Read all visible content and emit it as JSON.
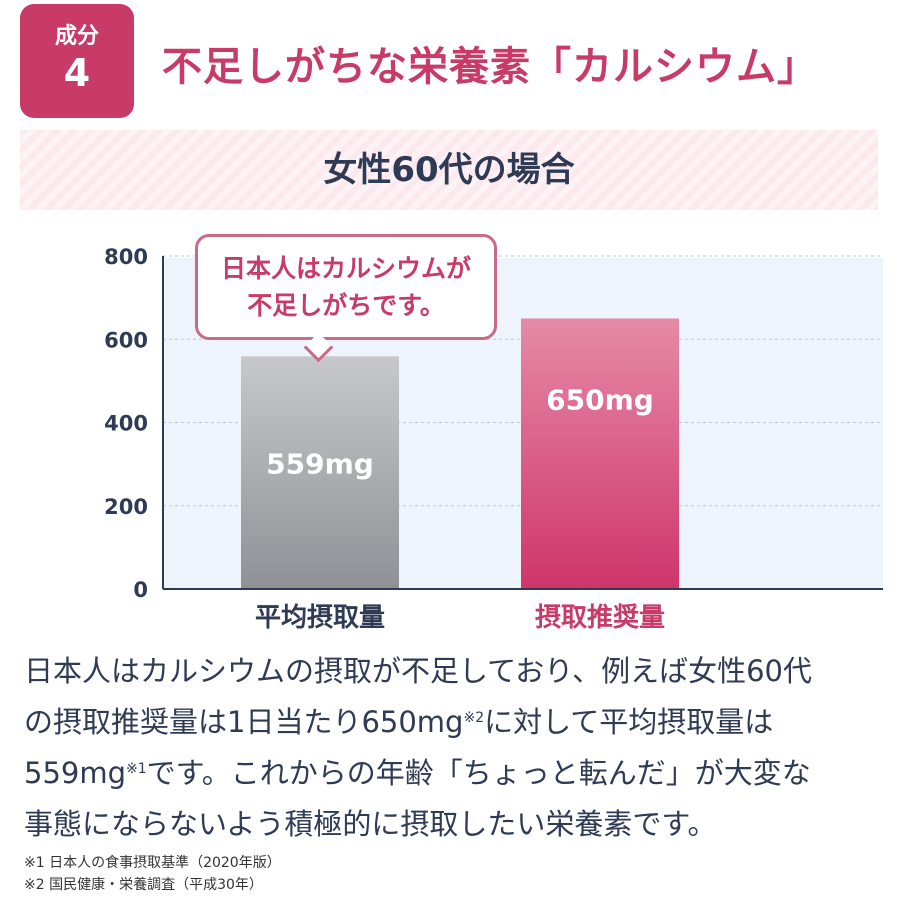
{
  "header": {
    "badge_label": "成分",
    "badge_number": "4",
    "title": "不足しがちな栄養素「カルシウム」",
    "subtitle": "女性60代の場合"
  },
  "callout": {
    "line1": "日本人はカルシウムが",
    "line2": "不足しがちです。"
  },
  "chart_data": {
    "type": "bar",
    "title": "",
    "xlabel": "",
    "ylabel": "",
    "categories": [
      "平均摂取量",
      "摂取推奨量"
    ],
    "values": [
      559,
      650
    ],
    "value_labels": [
      "559mg",
      "650mg"
    ],
    "ylim": [
      0,
      800
    ],
    "yticks": [
      0,
      200,
      400,
      600,
      800
    ],
    "grid": true,
    "bar_colors": [
      "#a3a5aa",
      "#d03d6f"
    ],
    "category_label_colors": [
      "#2f3a55",
      "#c83a68"
    ]
  },
  "body": {
    "line1": "日本人はカルシウムの摂取が不足しており、例えば女性60代",
    "line2a": "の摂取推奨量は1日当たり650mg",
    "line2_sup": "※2",
    "line2b": "に対して平均摂取量は",
    "line3a": "559mg",
    "line3_sup": "※1",
    "line3b": "です。これからの年齢「ちょっと転んだ」が大変な",
    "line4": "事態にならないよう積極的に摂取したい栄養素です。"
  },
  "footnotes": [
    "※1 日本人の食事摂取基準（2020年版）",
    "※2 国民健康・栄養調査（平成30年）"
  ],
  "colors": {
    "accent": "#c83a68",
    "navy": "#2f3a55"
  }
}
